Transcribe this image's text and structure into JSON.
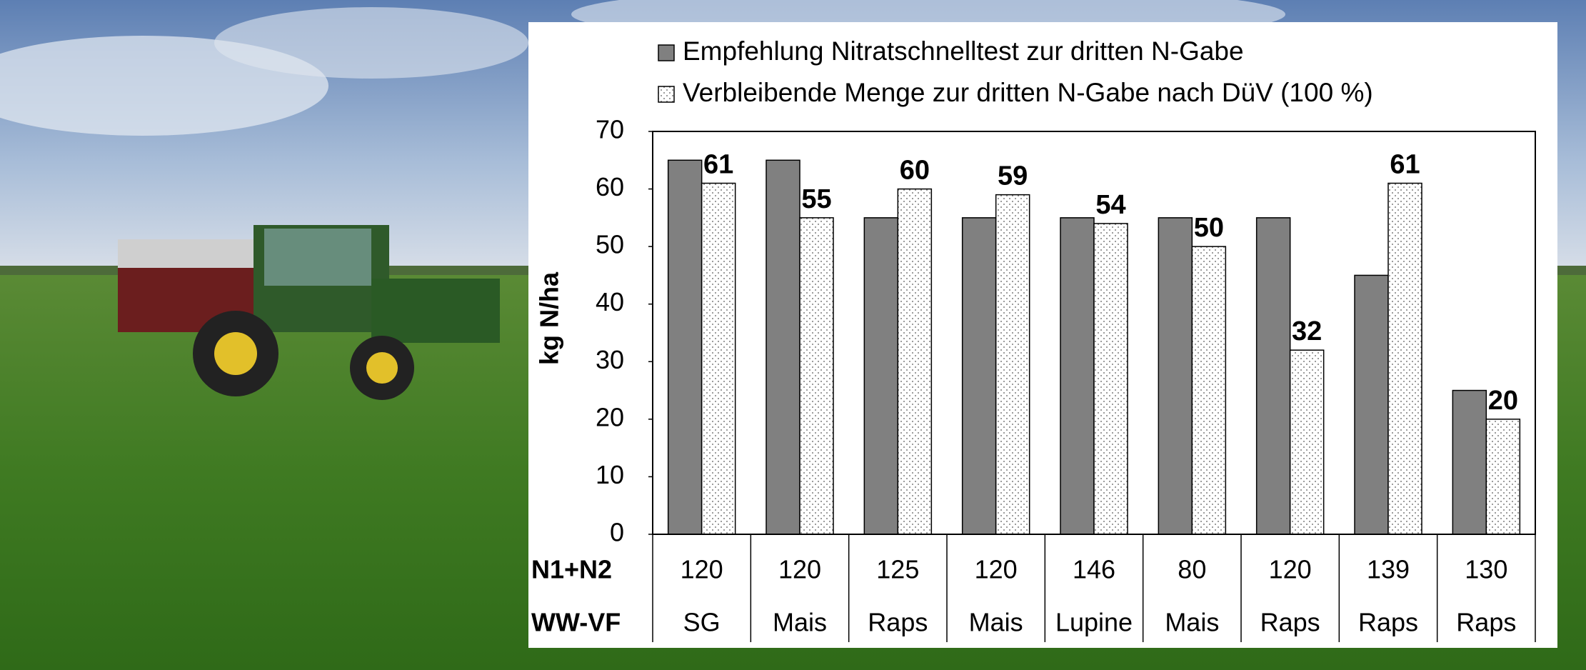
{
  "chart_data": {
    "type": "bar",
    "categories": [
      "SG",
      "Mais",
      "Raps",
      "Mais",
      "Lupine",
      "Mais",
      "Raps",
      "Raps",
      "Raps"
    ],
    "category_row_label": "WW-VF",
    "n_row": {
      "label": "N1+N2",
      "values": [
        120,
        120,
        125,
        120,
        146,
        80,
        120,
        139,
        130
      ]
    },
    "y_label": "kg N/ha",
    "ylim": [
      0,
      70
    ],
    "yticks": [
      0,
      10,
      20,
      30,
      40,
      50,
      60,
      70
    ],
    "series": [
      {
        "name": "Empfehlung Nitratschnelltest zur dritten N-Gabe",
        "color": "#808080",
        "values": [
          65,
          65,
          55,
          55,
          55,
          55,
          55,
          45,
          25
        ]
      },
      {
        "name": "Verbleibende Menge zur dritten N-Gabe nach DüV (100 %)",
        "color": "dotted",
        "values": [
          61,
          55,
          60,
          59,
          54,
          50,
          32,
          61,
          20
        ],
        "data_labels": true
      }
    ]
  }
}
